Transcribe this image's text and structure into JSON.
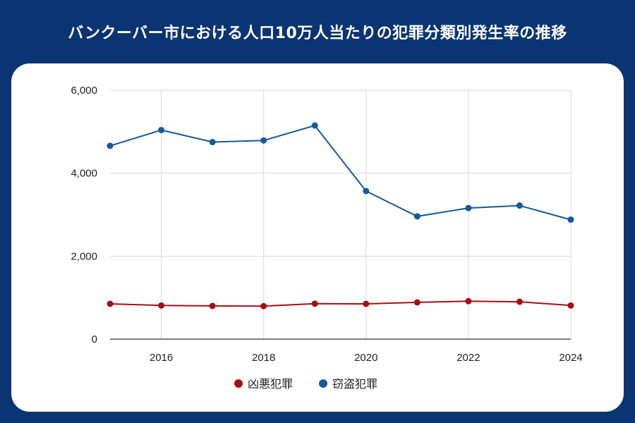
{
  "title": "バンクーバー市における人口10万人当たりの犯罪分類別発生率の推移",
  "chart_data": {
    "type": "line",
    "title": "バンクーバー市における人口10万人当たりの犯罪分類別発生率の推移",
    "xlabel": "",
    "ylabel": "",
    "x": [
      2015,
      2016,
      2017,
      2018,
      2019,
      2020,
      2021,
      2022,
      2023,
      2024
    ],
    "xticks": [
      2016,
      2018,
      2020,
      2022,
      2024
    ],
    "xtick_labels": [
      "2016",
      "2018",
      "2020",
      "2022",
      "2024"
    ],
    "yticks": [
      0,
      2000,
      4000,
      6000
    ],
    "ytick_labels": [
      "0",
      "2,000",
      "4,000",
      "6,000"
    ],
    "xlim": [
      2015,
      2024
    ],
    "ylim": [
      0,
      6000
    ],
    "grid": true,
    "legend_position": "bottom",
    "series": [
      {
        "name": "凶悪犯罪",
        "color": "#a50f15",
        "values": [
          850,
          810,
          800,
          795,
          855,
          850,
          885,
          915,
          900,
          810
        ]
      },
      {
        "name": "窃盗犯罪",
        "color": "#155a9c",
        "values": [
          4660,
          5040,
          4750,
          4790,
          5150,
          3570,
          2960,
          3160,
          3220,
          2880
        ]
      }
    ]
  }
}
